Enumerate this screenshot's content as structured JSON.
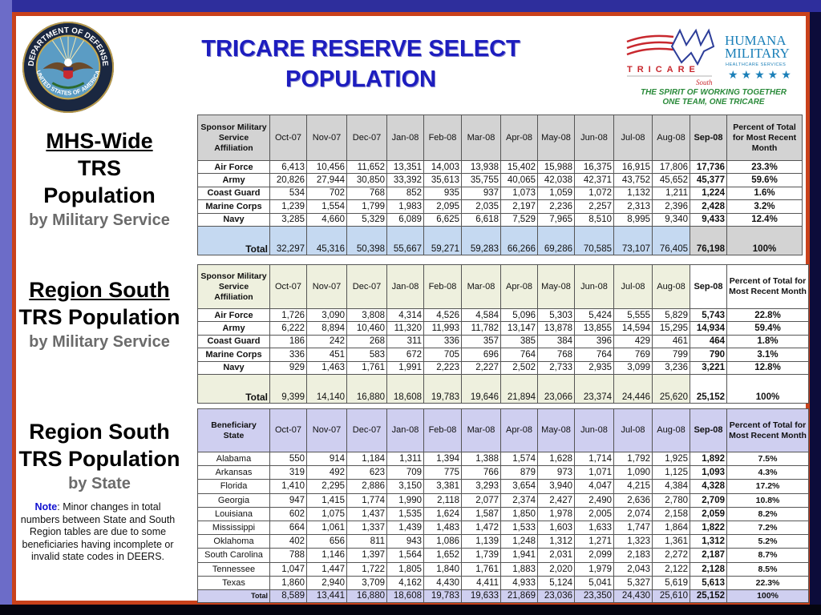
{
  "title": [
    "TRICARE RESERVE SELECT",
    "POPULATION"
  ],
  "seal": {
    "text_top": "DEPARTMENT OF DEFENSE",
    "text_bottom": "UNITED STATES OF AMERICA"
  },
  "logo": {
    "tricare": "TRICARE",
    "region": "South",
    "humana_1": "HUMANA",
    "humana_2": "MILITARY",
    "humana_3": "HEALTHCARE SERVICES",
    "slogan_1": "THE SPIRIT OF WORKING TOGETHER",
    "slogan_2": "ONE TEAM, ONE TRICARE"
  },
  "colors": {
    "title": "#1d1dbf",
    "frame_border": "#c9411b",
    "frame": "#2e2e9c",
    "slogan": "#2a8a3a",
    "humana": "#1a7fb8",
    "tricare_red": "#c8282e"
  },
  "sections": [
    {
      "lines": [
        "MHS-Wide",
        "TRS",
        "Population"
      ],
      "sub": "by Military Service"
    },
    {
      "lines": [
        "Region South",
        "TRS Population"
      ],
      "sub": "by Military Service"
    },
    {
      "lines": [
        "Region South",
        "TRS Population"
      ],
      "sub": "by State"
    }
  ],
  "note": {
    "label": "Note",
    "text": ": Minor changes in total numbers between State and South Region tables are due to some beneficiaries having incomplete or invalid state codes in DEERS."
  },
  "tables": [
    {
      "header_label": "Sponsor Military Service Affiliation",
      "months": [
        "Oct-07",
        "Nov-07",
        "Dec-07",
        "Jan-08",
        "Feb-08",
        "Mar-08",
        "Apr-08",
        "May-08",
        "Jun-08",
        "Jul-08",
        "Aug-08",
        "Sep-08"
      ],
      "pct_header": "Percent of Total for Most Recent Month",
      "rows": [
        {
          "label": "Air Force",
          "values": [
            "6,413",
            "10,456",
            "11,652",
            "13,351",
            "14,003",
            "13,938",
            "15,402",
            "15,988",
            "16,375",
            "16,915",
            "17,806",
            "17,736"
          ],
          "pct": "23.3%"
        },
        {
          "label": "Army",
          "values": [
            "20,826",
            "27,944",
            "30,850",
            "33,392",
            "35,613",
            "35,755",
            "40,065",
            "42,038",
            "42,371",
            "43,752",
            "45,652",
            "45,377"
          ],
          "pct": "59.6%"
        },
        {
          "label": "Coast Guard",
          "values": [
            "534",
            "702",
            "768",
            "852",
            "935",
            "937",
            "1,073",
            "1,059",
            "1,072",
            "1,132",
            "1,211",
            "1,224"
          ],
          "pct": "1.6%"
        },
        {
          "label": "Marine Corps",
          "values": [
            "1,239",
            "1,554",
            "1,799",
            "1,983",
            "2,095",
            "2,035",
            "2,197",
            "2,236",
            "2,257",
            "2,313",
            "2,396",
            "2,428"
          ],
          "pct": "3.2%"
        },
        {
          "label": "Navy",
          "values": [
            "3,285",
            "4,660",
            "5,329",
            "6,089",
            "6,625",
            "6,618",
            "7,529",
            "7,965",
            "8,510",
            "8,995",
            "9,340",
            "9,433"
          ],
          "pct": "12.4%"
        }
      ],
      "total": {
        "label": "Total",
        "values": [
          "32,297",
          "45,316",
          "50,398",
          "55,667",
          "59,271",
          "59,283",
          "66,266",
          "69,286",
          "70,585",
          "73,107",
          "76,405",
          "76,198"
        ],
        "pct": "100%"
      }
    },
    {
      "header_label": "Sponsor Military Service Affiliation",
      "months": [
        "Oct-07",
        "Nov-07",
        "Dec-07",
        "Jan-08",
        "Feb-08",
        "Mar-08",
        "Apr-08",
        "May-08",
        "Jun-08",
        "Jul-08",
        "Aug-08",
        "Sep-08"
      ],
      "pct_header": "Percent of Total for Most Recent Month",
      "rows": [
        {
          "label": "Air Force",
          "values": [
            "1,726",
            "3,090",
            "3,808",
            "4,314",
            "4,526",
            "4,584",
            "5,096",
            "5,303",
            "5,424",
            "5,555",
            "5,829",
            "5,743"
          ],
          "pct": "22.8%"
        },
        {
          "label": "Army",
          "values": [
            "6,222",
            "8,894",
            "10,460",
            "11,320",
            "11,993",
            "11,782",
            "13,147",
            "13,878",
            "13,855",
            "14,594",
            "15,295",
            "14,934"
          ],
          "pct": "59.4%"
        },
        {
          "label": "Coast Guard",
          "values": [
            "186",
            "242",
            "268",
            "311",
            "336",
            "357",
            "385",
            "384",
            "396",
            "429",
            "461",
            "464"
          ],
          "pct": "1.8%"
        },
        {
          "label": "Marine Corps",
          "values": [
            "336",
            "451",
            "583",
            "672",
            "705",
            "696",
            "764",
            "768",
            "764",
            "769",
            "799",
            "790"
          ],
          "pct": "3.1%"
        },
        {
          "label": "Navy",
          "values": [
            "929",
            "1,463",
            "1,761",
            "1,991",
            "2,223",
            "2,227",
            "2,502",
            "2,733",
            "2,935",
            "3,099",
            "3,236",
            "3,221"
          ],
          "pct": "12.8%"
        }
      ],
      "total": {
        "label": "Total",
        "values": [
          "9,399",
          "14,140",
          "16,880",
          "18,608",
          "19,783",
          "19,646",
          "21,894",
          "23,066",
          "23,374",
          "24,446",
          "25,620",
          "25,152"
        ],
        "pct": "100%"
      }
    },
    {
      "header_label": "Beneficiary State",
      "months": [
        "Oct-07",
        "Nov-07",
        "Dec-07",
        "Jan-08",
        "Feb-08",
        "Mar-08",
        "Apr-08",
        "May-08",
        "Jun-08",
        "Jul-08",
        "Aug-08",
        "Sep-08"
      ],
      "pct_header": "Percent of Total for Most Recent Month",
      "rows": [
        {
          "label": "Alabama",
          "values": [
            "550",
            "914",
            "1,184",
            "1,311",
            "1,394",
            "1,388",
            "1,574",
            "1,628",
            "1,714",
            "1,792",
            "1,925",
            "1,892"
          ],
          "pct": "7.5%"
        },
        {
          "label": "Arkansas",
          "values": [
            "319",
            "492",
            "623",
            "709",
            "775",
            "766",
            "879",
            "973",
            "1,071",
            "1,090",
            "1,125",
            "1,093"
          ],
          "pct": "4.3%"
        },
        {
          "label": "Florida",
          "values": [
            "1,410",
            "2,295",
            "2,886",
            "3,150",
            "3,381",
            "3,293",
            "3,654",
            "3,940",
            "4,047",
            "4,215",
            "4,384",
            "4,328"
          ],
          "pct": "17.2%"
        },
        {
          "label": "Georgia",
          "values": [
            "947",
            "1,415",
            "1,774",
            "1,990",
            "2,118",
            "2,077",
            "2,374",
            "2,427",
            "2,490",
            "2,636",
            "2,780",
            "2,709"
          ],
          "pct": "10.8%"
        },
        {
          "label": "Louisiana",
          "values": [
            "602",
            "1,075",
            "1,437",
            "1,535",
            "1,624",
            "1,587",
            "1,850",
            "1,978",
            "2,005",
            "2,074",
            "2,158",
            "2,059"
          ],
          "pct": "8.2%"
        },
        {
          "label": "Mississippi",
          "values": [
            "664",
            "1,061",
            "1,337",
            "1,439",
            "1,483",
            "1,472",
            "1,533",
            "1,603",
            "1,633",
            "1,747",
            "1,864",
            "1,822"
          ],
          "pct": "7.2%"
        },
        {
          "label": "Oklahoma",
          "values": [
            "402",
            "656",
            "811",
            "943",
            "1,086",
            "1,139",
            "1,248",
            "1,312",
            "1,271",
            "1,323",
            "1,361",
            "1,312"
          ],
          "pct": "5.2%"
        },
        {
          "label": "South Carolina",
          "values": [
            "788",
            "1,146",
            "1,397",
            "1,564",
            "1,652",
            "1,739",
            "1,941",
            "2,031",
            "2,099",
            "2,183",
            "2,272",
            "2,187"
          ],
          "pct": "8.7%"
        },
        {
          "label": "Tennessee",
          "values": [
            "1,047",
            "1,447",
            "1,722",
            "1,805",
            "1,840",
            "1,761",
            "1,883",
            "2,020",
            "1,979",
            "2,043",
            "2,122",
            "2,128"
          ],
          "pct": "8.5%"
        },
        {
          "label": "Texas",
          "values": [
            "1,860",
            "2,940",
            "3,709",
            "4,162",
            "4,430",
            "4,411",
            "4,933",
            "5,124",
            "5,041",
            "5,327",
            "5,619",
            "5,613"
          ],
          "pct": "22.3%"
        }
      ],
      "total": {
        "label": "Total",
        "values": [
          "8,589",
          "13,441",
          "16,880",
          "18,608",
          "19,783",
          "19,633",
          "21,869",
          "23,036",
          "23,350",
          "24,430",
          "25,610",
          "25,152"
        ],
        "pct": "100%"
      }
    }
  ]
}
